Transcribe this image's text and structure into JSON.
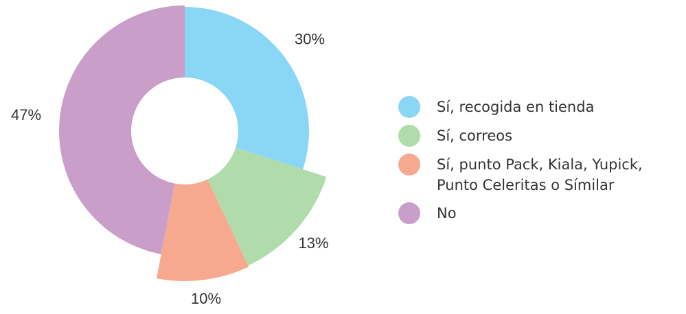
{
  "chart_data": {
    "type": "pie",
    "categories": [
      "Sí, recogida en tienda",
      "Sí, correos",
      "Sí, punto Pack, Kiala, Yupick, Punto Celeritas o Símilar",
      "No"
    ],
    "values": [
      30,
      13,
      10,
      47
    ],
    "value_labels": [
      "30%",
      "13%",
      "10%",
      "47%"
    ],
    "colors": [
      "#89d6f5",
      "#b0dbab",
      "#f7a98f",
      "#c99ec9"
    ],
    "legend": "right"
  }
}
